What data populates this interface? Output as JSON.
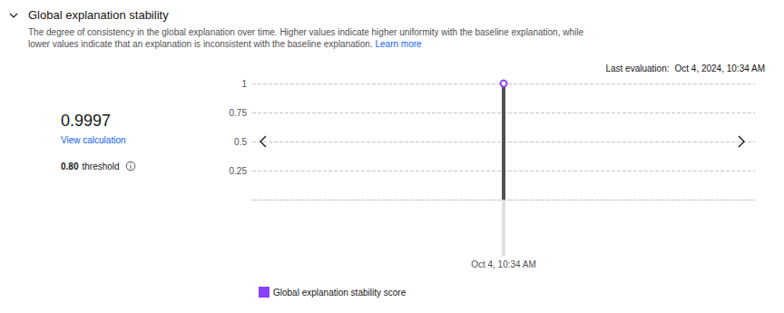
{
  "header": {
    "title": "Global explanation stability",
    "description": [
      "The degree of consistency in the global explanation over time. Higher values indicate higher uniformity with the baseline explanation, while",
      "lower values indicate that an explanation is inconsistent with the baseline explanation."
    ],
    "link": "Learn more"
  },
  "last_evaluation": {
    "label": "Last evaluation:",
    "value": "Oct 4, 2024, 10:34 AM"
  },
  "summary": {
    "score": "0.9997",
    "link": "View calculation",
    "threshold": "0.80",
    "threshold_label": "threshold"
  },
  "chart_data": {
    "type": "line",
    "categories": [
      "Oct 4, 10:34 AM"
    ],
    "series": [
      {
        "name": "Global explanation stability score",
        "color": "#8a3ffc",
        "values": [
          0.9997
        ],
        "marker": "circle"
      }
    ],
    "ylim": [
      0,
      1
    ],
    "yticks": [
      0.25,
      0.5,
      0.75,
      1
    ],
    "grid": true,
    "legend": "bottom-left"
  }
}
